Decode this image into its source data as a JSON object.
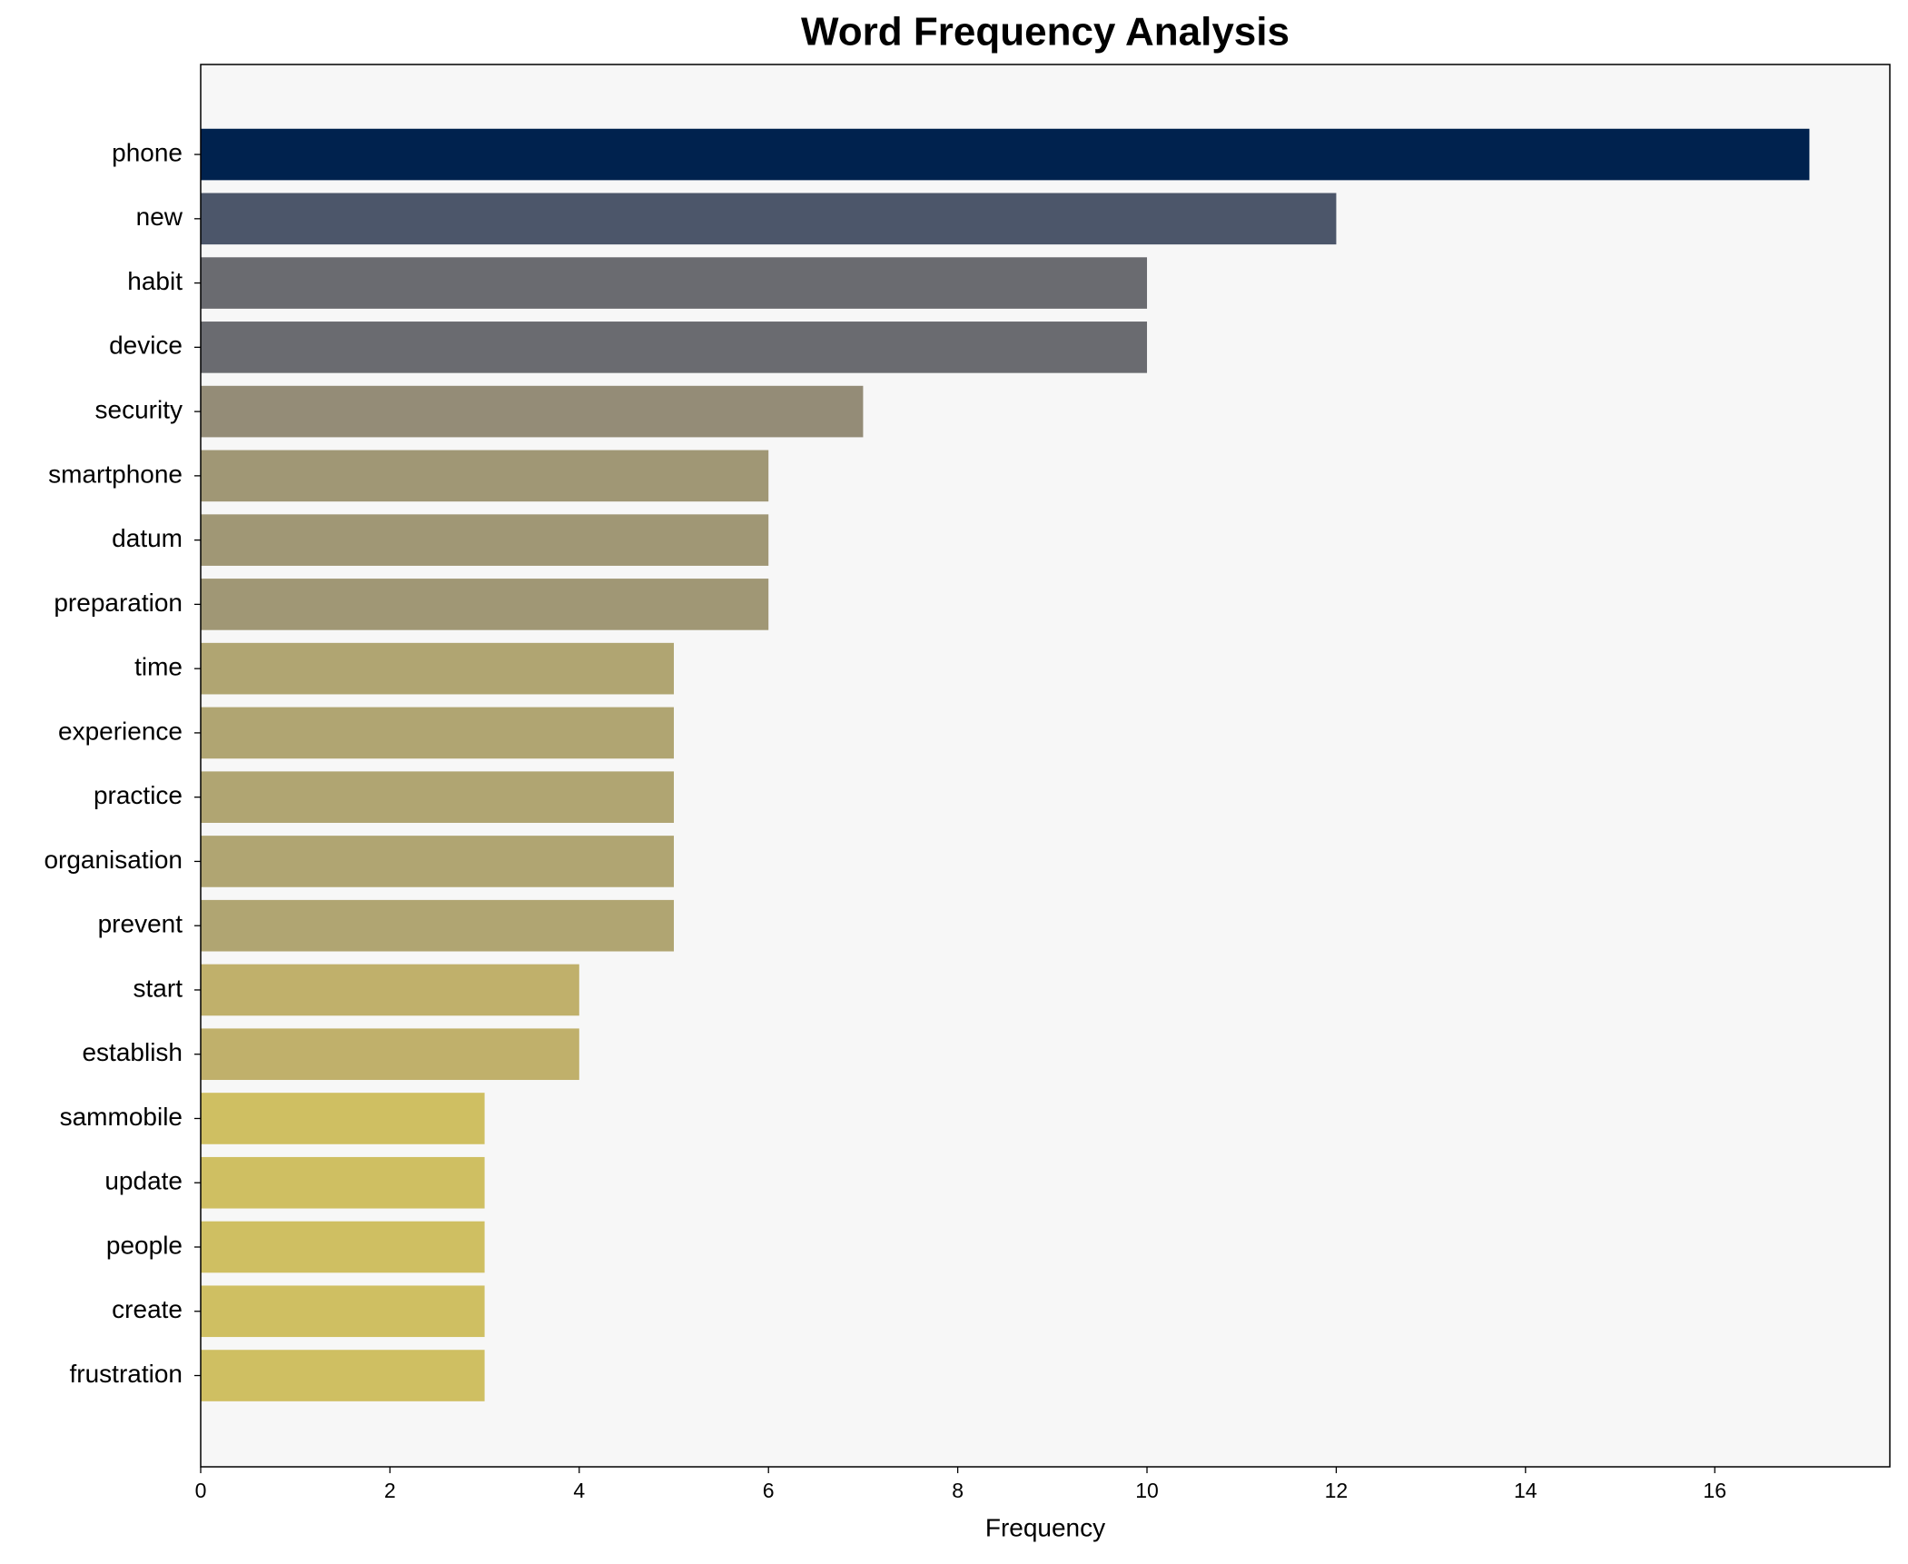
{
  "chart_data": {
    "type": "barh",
    "title": "Word Frequency Analysis",
    "x_label": "Frequency",
    "categories": [
      "phone",
      "new",
      "habit",
      "device",
      "security",
      "smartphone",
      "datum",
      "preparation",
      "time",
      "experience",
      "practice",
      "organisation",
      "prevent",
      "start",
      "establish",
      "sammobile",
      "update",
      "people",
      "create",
      "frustration"
    ],
    "values": [
      17,
      12,
      10,
      10,
      7,
      6,
      6,
      6,
      5,
      5,
      5,
      5,
      5,
      4,
      4,
      3,
      3,
      3,
      3,
      3
    ],
    "colors": [
      "#00224e",
      "#4c566a",
      "#6a6b70",
      "#6a6b70",
      "#948c77",
      "#a09775",
      "#a09775",
      "#a09775",
      "#b0a572",
      "#b0a572",
      "#b0a572",
      "#b0a572",
      "#b0a572",
      "#c0b06b",
      "#c0b06b",
      "#cfbf62",
      "#cfbf62",
      "#cfbf62",
      "#cfbf62",
      "#cfbf62"
    ],
    "xlim": [
      0,
      17.85
    ],
    "xticks": [
      0,
      2,
      4,
      6,
      8,
      10,
      12,
      14,
      16
    ],
    "plot_background": "#f7f7f7"
  }
}
